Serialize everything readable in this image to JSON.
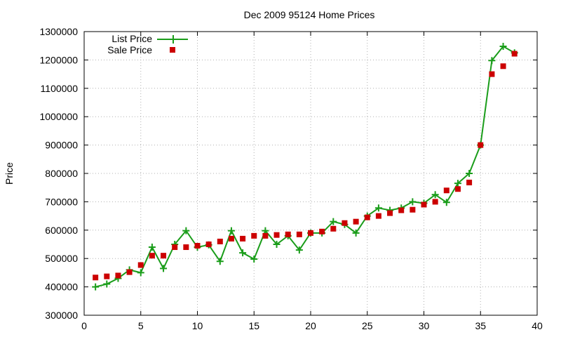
{
  "chart_data": {
    "type": "line",
    "title": "Dec 2009 95124 Home Prices",
    "xlabel": "",
    "ylabel": "Price",
    "xlim": [
      0,
      40
    ],
    "ylim": [
      300000,
      1300000
    ],
    "x_ticks": [
      0,
      5,
      10,
      15,
      20,
      25,
      30,
      35,
      40
    ],
    "y_ticks": [
      300000,
      400000,
      500000,
      600000,
      700000,
      800000,
      900000,
      1000000,
      1100000,
      1200000,
      1300000
    ],
    "x_tick_labels": [
      "0",
      "5",
      "10",
      "15",
      "20",
      "25",
      "30",
      "35",
      "40"
    ],
    "y_tick_labels": [
      "300000",
      "400000",
      "500000",
      "600000",
      "700000",
      "800000",
      "900000",
      "1000000",
      "1100000",
      "1200000",
      "1300000"
    ],
    "grid": true,
    "legend_position": "top-left",
    "x": [
      1,
      2,
      3,
      4,
      5,
      6,
      7,
      8,
      9,
      10,
      11,
      12,
      13,
      14,
      15,
      16,
      17,
      18,
      19,
      20,
      21,
      22,
      23,
      24,
      25,
      26,
      27,
      28,
      29,
      30,
      31,
      32,
      33,
      34,
      35,
      36,
      37,
      38
    ],
    "series": [
      {
        "name": "List Price",
        "style": "line+plus",
        "color": "#1a9d1a",
        "values": [
          400000,
          410000,
          430000,
          460000,
          450000,
          540000,
          465000,
          550000,
          598000,
          540000,
          548000,
          490000,
          598000,
          520000,
          498000,
          598000,
          550000,
          580000,
          530000,
          590000,
          590000,
          630000,
          620000,
          590000,
          650000,
          678000,
          670000,
          678000,
          700000,
          695000,
          725000,
          698000,
          765000,
          800000,
          900000,
          1198000,
          1248000,
          1225000
        ]
      },
      {
        "name": "Sale Price",
        "style": "square",
        "color": "#cc0000",
        "values": [
          433000,
          437000,
          440000,
          452000,
          477000,
          510000,
          510000,
          540000,
          540000,
          545000,
          550000,
          560000,
          570000,
          570000,
          580000,
          580000,
          583000,
          585000,
          585000,
          590000,
          595000,
          605000,
          625000,
          630000,
          645000,
          650000,
          660000,
          670000,
          672000,
          690000,
          700000,
          740000,
          745000,
          768000,
          900000,
          1150000,
          1178000,
          1222000
        ]
      }
    ]
  }
}
